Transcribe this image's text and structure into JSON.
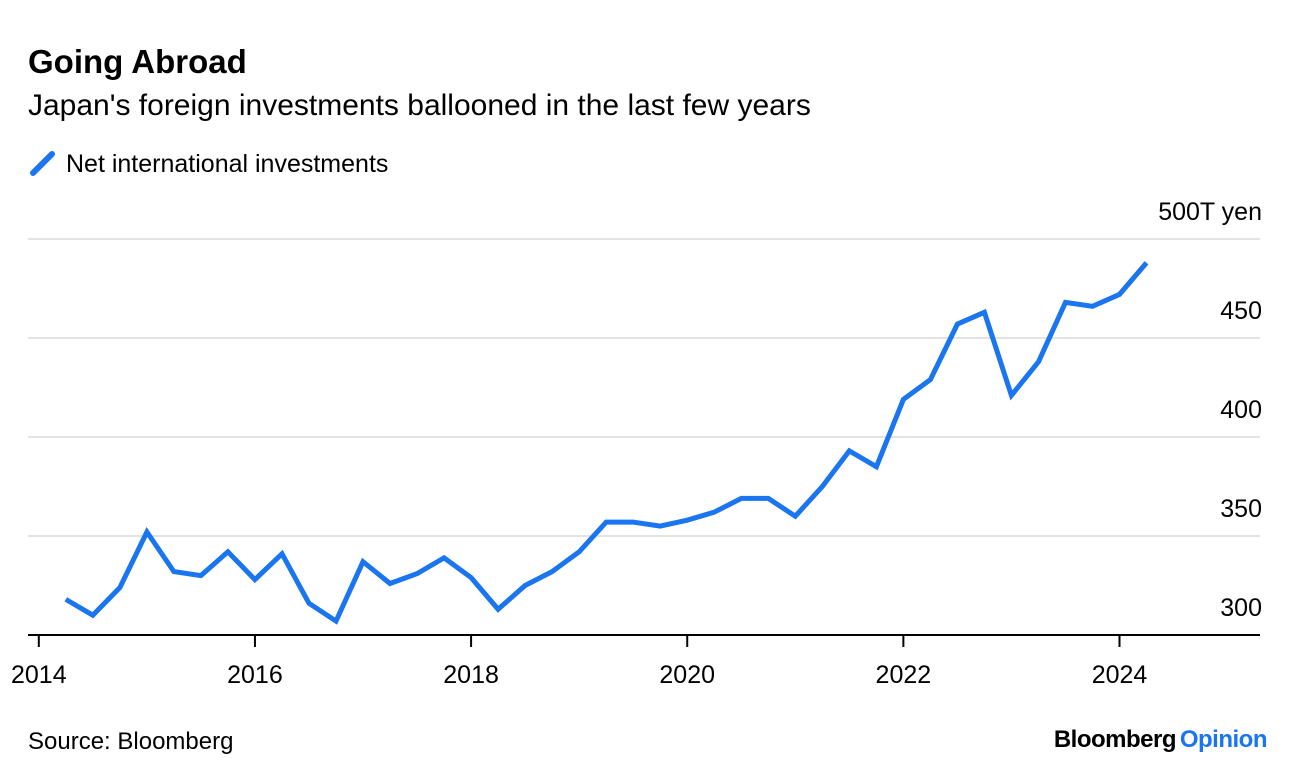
{
  "chart_data": {
    "type": "line",
    "title": "Going Abroad",
    "subtitle": "Japan's foreign investments ballooned in the last few years",
    "source": "Source: Bloomberg",
    "brand": [
      "Bloomberg",
      "Opinion"
    ],
    "x": [
      2014.25,
      2014.5,
      2014.75,
      2015,
      2015.25,
      2015.5,
      2015.75,
      2016,
      2016.25,
      2016.5,
      2016.75,
      2017,
      2017.25,
      2017.5,
      2017.75,
      2018,
      2018.25,
      2018.5,
      2018.75,
      2019,
      2019.25,
      2019.5,
      2019.75,
      2020,
      2020.25,
      2020.5,
      2020.75,
      2021,
      2021.25,
      2021.5,
      2021.75,
      2022,
      2022.25,
      2022.5,
      2022.75,
      2023,
      2023.25,
      2023.5,
      2023.75,
      2024,
      2024.25
    ],
    "series": [
      {
        "name": "Net international investments",
        "color": "#1a75f0",
        "values": [
          318,
          310,
          324,
          352,
          332,
          330,
          342,
          328,
          341,
          316,
          307,
          337,
          326,
          331,
          339,
          329,
          313,
          325,
          332,
          342,
          357,
          357,
          355,
          358,
          362,
          369,
          369,
          360,
          375,
          393,
          385,
          419,
          429,
          457,
          463,
          421,
          438,
          468,
          466,
          472,
          488
        ]
      }
    ],
    "xlim": [
      2013.9,
      2025.3
    ],
    "xticks": [
      2014,
      2016,
      2018,
      2020,
      2022,
      2024
    ],
    "ylim": [
      300,
      500
    ],
    "yticks": [
      300,
      350,
      400,
      450,
      {
        "value": 500,
        "label": "500T yen"
      }
    ],
    "grid": true
  }
}
